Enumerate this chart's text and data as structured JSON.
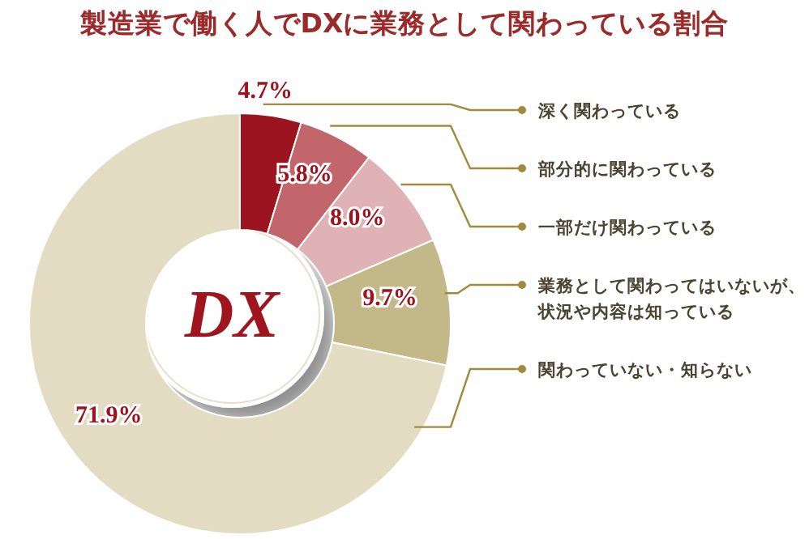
{
  "chart_data": {
    "type": "donut",
    "title": "製造業で働く人でDXに業務として関わっている割合",
    "categories": [
      "深く関わっている",
      "部分的に関わっている",
      "一部だけ関わっている",
      "業務として関わってはいないが、状況や内容は知っている",
      "関わっていない・知らない"
    ],
    "values": [
      4.7,
      5.8,
      8.0,
      9.7,
      71.9
    ],
    "value_labels": [
      "4.7%",
      "5.8%",
      "8.0%",
      "9.7%",
      "71.9%"
    ],
    "colors": [
      "#9b1420",
      "#c2666c",
      "#dfb3b5",
      "#c3b887",
      "#e3dcc3"
    ],
    "annotations": [
      "DX"
    ]
  }
}
